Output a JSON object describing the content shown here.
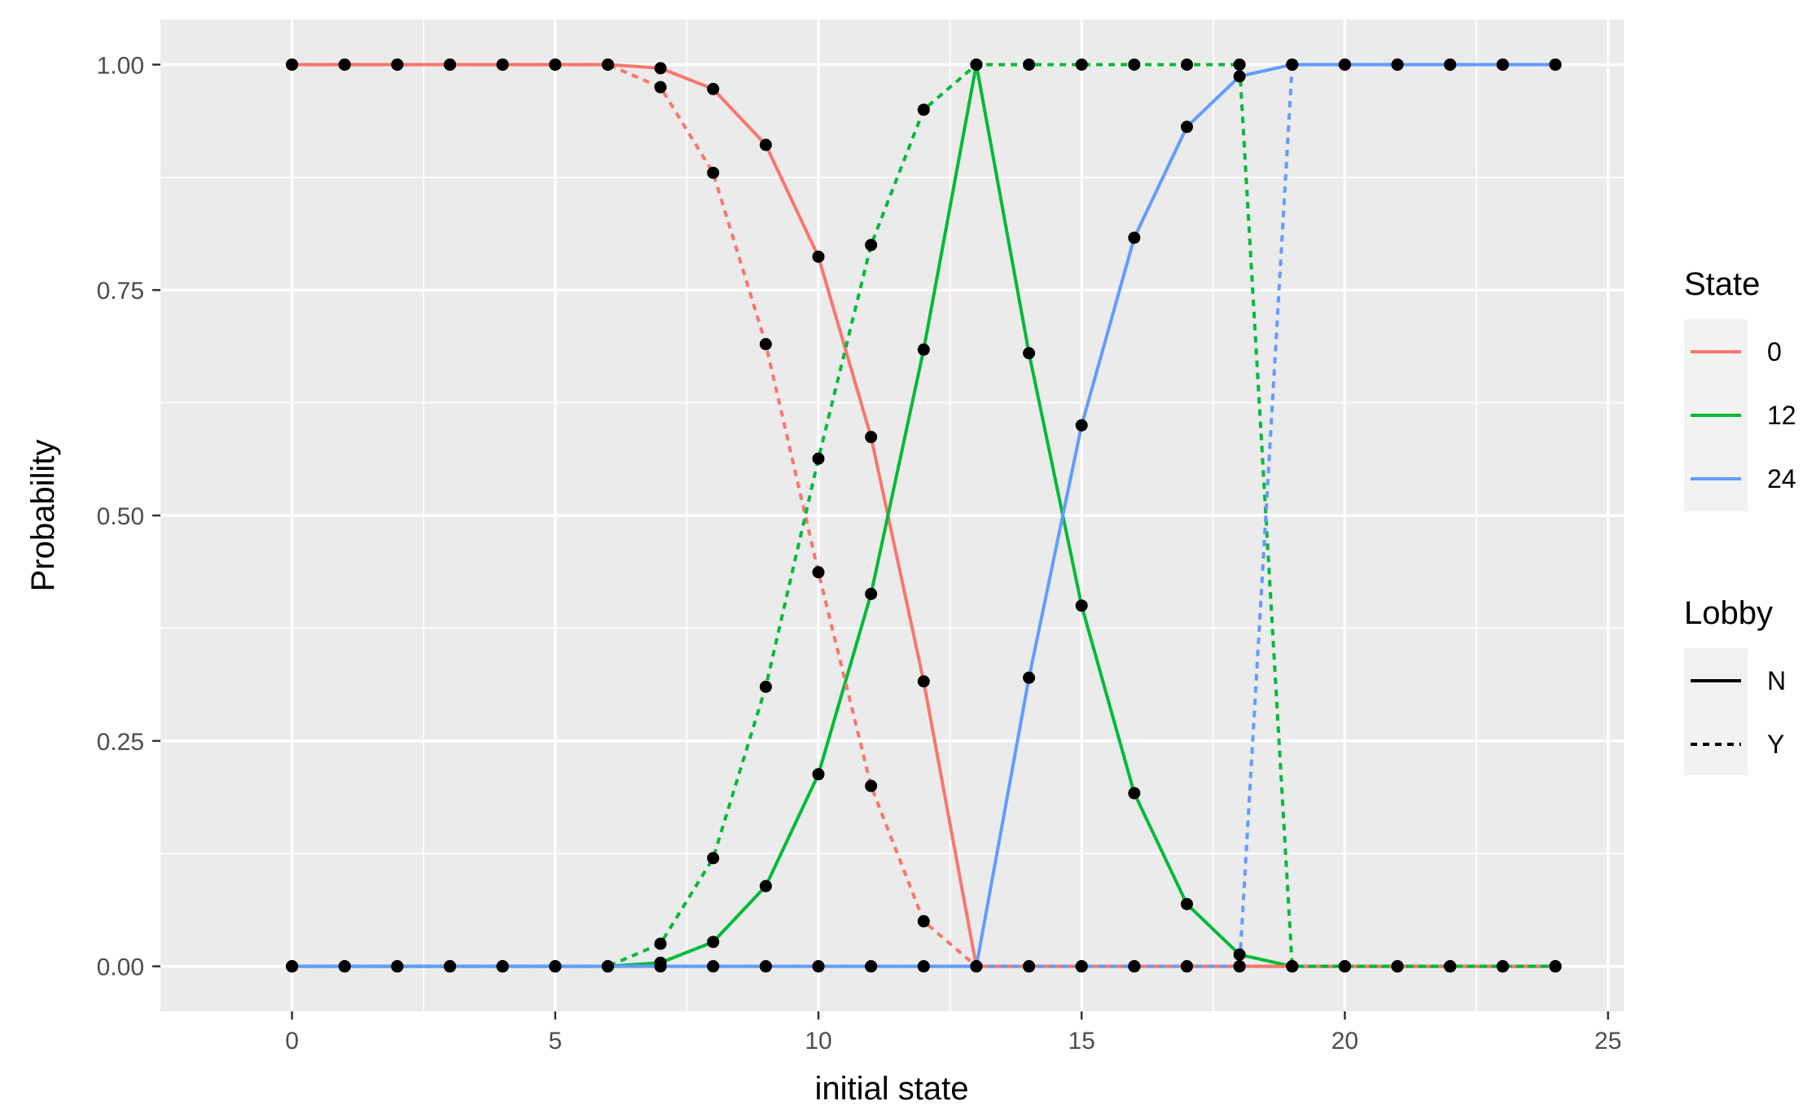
{
  "chart_data": {
    "type": "line",
    "xlabel": "initial state",
    "ylabel": "Probability",
    "xlim": [
      -2.5,
      25.3
    ],
    "ylim": [
      -0.05,
      1.05
    ],
    "x_ticks": [
      0,
      5,
      10,
      15,
      20,
      25
    ],
    "y_ticks": [
      0,
      0.25,
      0.5,
      0.75,
      1.0
    ],
    "x_tick_labels": [
      "0",
      "5",
      "10",
      "15",
      "20",
      "25"
    ],
    "y_tick_labels": [
      "0.00",
      "0.25",
      "0.50",
      "0.75",
      "1.00"
    ],
    "grid": true,
    "background": "#ebebeb",
    "legend": {
      "position": "right",
      "state_title": "State",
      "lobby_title": "Lobby",
      "state_items": [
        {
          "label": "0",
          "color": "#f8766d"
        },
        {
          "label": "12",
          "color": "#00ba38"
        },
        {
          "label": "24",
          "color": "#619cff"
        }
      ],
      "lobby_items": [
        {
          "label": "N",
          "linetype": "solid"
        },
        {
          "label": "Y",
          "linetype": "dashed"
        }
      ]
    },
    "x": [
      0,
      1,
      2,
      3,
      4,
      5,
      6,
      7,
      8,
      9,
      10,
      11,
      12,
      13,
      14,
      15,
      16,
      17,
      18,
      19,
      20,
      21,
      22,
      23,
      24
    ],
    "series": [
      {
        "state": "0",
        "lobby": "N",
        "color": "#f8766d",
        "linetype": "solid",
        "values": [
          1,
          1,
          1,
          1,
          1,
          1,
          1,
          0.996,
          0.973,
          0.911,
          0.787,
          0.587,
          0.316,
          0,
          0,
          0,
          0,
          0,
          0,
          0,
          0,
          0,
          0,
          0,
          0
        ]
      },
      {
        "state": "12",
        "lobby": "N",
        "color": "#00ba38",
        "linetype": "solid",
        "values": [
          0,
          0,
          0,
          0,
          0,
          0,
          0,
          0.004,
          0.027,
          0.089,
          0.213,
          0.413,
          0.684,
          1,
          0.68,
          0.4,
          0.192,
          0.069,
          0.013,
          0,
          0,
          0,
          0,
          0,
          0
        ]
      },
      {
        "state": "24",
        "lobby": "N",
        "color": "#619cff",
        "linetype": "solid",
        "values": [
          0,
          0,
          0,
          0,
          0,
          0,
          0,
          0,
          0,
          0,
          0,
          0,
          0,
          0,
          0.32,
          0.6,
          0.808,
          0.931,
          0.987,
          1,
          1,
          1,
          1,
          1,
          1
        ]
      },
      {
        "state": "0",
        "lobby": "Y",
        "color": "#f8766d",
        "linetype": "dashed",
        "values": [
          1,
          1,
          1,
          1,
          1,
          1,
          1,
          0.975,
          0.88,
          0.69,
          0.437,
          0.2,
          0.05,
          0,
          0,
          0,
          0,
          0,
          0,
          0,
          0,
          0,
          0,
          0,
          0
        ]
      },
      {
        "state": "12",
        "lobby": "Y",
        "color": "#00ba38",
        "linetype": "dashed",
        "values": [
          0,
          0,
          0,
          0,
          0,
          0,
          0,
          0.025,
          0.12,
          0.31,
          0.563,
          0.8,
          0.95,
          1,
          1,
          1,
          1,
          1,
          1,
          0,
          0,
          0,
          0,
          0,
          0
        ]
      },
      {
        "state": "24",
        "lobby": "Y",
        "color": "#619cff",
        "linetype": "dashed",
        "values": [
          0,
          0,
          0,
          0,
          0,
          0,
          0,
          0,
          0,
          0,
          0,
          0,
          0,
          0,
          0,
          0,
          0,
          0,
          0,
          1,
          1,
          1,
          1,
          1,
          1
        ]
      }
    ]
  }
}
